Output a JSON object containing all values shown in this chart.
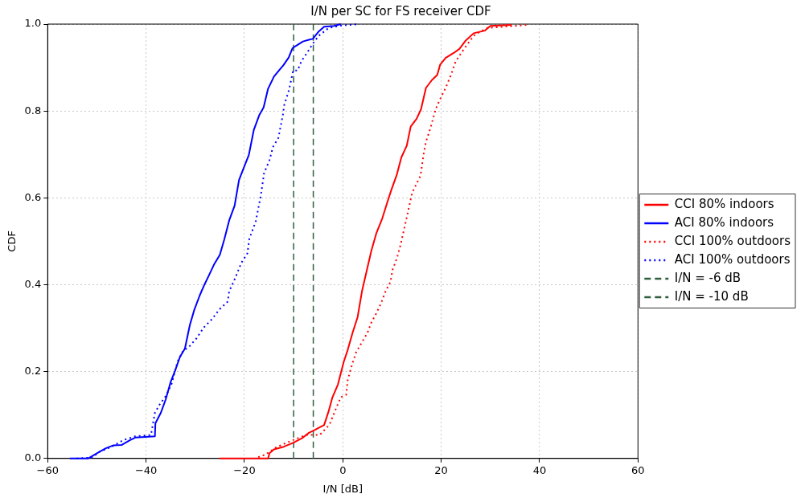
{
  "chart_data": {
    "type": "line",
    "title": "I/N per SC for FS receiver CDF",
    "xlabel": "I/N [dB]",
    "ylabel": "CDF",
    "xlim": [
      -60,
      60
    ],
    "ylim": [
      0,
      1
    ],
    "xticks": [
      {
        "value": -60,
        "label": "−60"
      },
      {
        "value": -40,
        "label": "−40"
      },
      {
        "value": -20,
        "label": "−20"
      },
      0,
      20,
      40,
      60
    ],
    "yticks": [
      {
        "value": 0,
        "label": "0.0"
      },
      {
        "value": 0.2,
        "label": "0.2"
      },
      {
        "value": 0.4,
        "label": "0.4"
      },
      {
        "value": 0.6,
        "label": "0.6"
      },
      {
        "value": 0.8,
        "label": "0.8"
      },
      {
        "value": 1,
        "label": "1.0"
      }
    ],
    "grid": true,
    "legend": "right",
    "marker": "none",
    "series": [
      {
        "name": "CCI 80% indoors",
        "color": "#ff0000",
        "line_style": "solid",
        "x": [
          -25.1,
          -15.2,
          -14.9,
          -14.0,
          -12.0,
          -10.1,
          -8.1,
          -6.9,
          -5.8,
          -4.8,
          -3.8,
          -2.9,
          -2.1,
          -1.0,
          0.2,
          1.0,
          2.0,
          3.0,
          3.9,
          4.9,
          5.8,
          6.8,
          8.0,
          9.0,
          9.8,
          11.0,
          11.9,
          13.0,
          13.8,
          15.0,
          15.9,
          16.9,
          18.1,
          19.2,
          19.8,
          20.9,
          22.6,
          23.7,
          24.9,
          26.6,
          28.9,
          30.0,
          34.3
        ],
        "values": [
          0,
          0,
          0.012,
          0.021,
          0.027,
          0.036,
          0.048,
          0.059,
          0.065,
          0.071,
          0.077,
          0.108,
          0.141,
          0.17,
          0.223,
          0.25,
          0.29,
          0.325,
          0.385,
          0.434,
          0.478,
          0.518,
          0.552,
          0.588,
          0.616,
          0.654,
          0.693,
          0.72,
          0.764,
          0.782,
          0.804,
          0.853,
          0.871,
          0.883,
          0.907,
          0.922,
          0.934,
          0.943,
          0.961,
          0.979,
          0.985,
          0.996,
          0.998
        ]
      },
      {
        "name": "ACI 80% indoors",
        "color": "#0000ff",
        "line_style": "solid",
        "x": [
          -55.5,
          -51.8,
          -49.5,
          -48.1,
          -46.7,
          -45.0,
          -43.3,
          -42.2,
          -38.2,
          -38.1,
          -37.0,
          -36.0,
          -35.0,
          -34.1,
          -33.1,
          -32.1,
          -31.1,
          -30.2,
          -29.1,
          -28.1,
          -27.2,
          -26.2,
          -25.0,
          -24.1,
          -23.1,
          -22.0,
          -21.1,
          -20.1,
          -19.1,
          -18.1,
          -17.0,
          -16.1,
          -15.2,
          -14.0,
          -13.0,
          -12.1,
          -11.0,
          -10.2,
          -9.2,
          -8.1,
          -6.9,
          -6.1,
          -4.9,
          -3.8,
          -1.8,
          -0.4
        ],
        "values": [
          0,
          0,
          0.015,
          0.024,
          0.03,
          0.031,
          0.042,
          0.048,
          0.051,
          0.081,
          0.105,
          0.136,
          0.176,
          0.202,
          0.234,
          0.253,
          0.307,
          0.342,
          0.375,
          0.401,
          0.422,
          0.446,
          0.469,
          0.504,
          0.548,
          0.582,
          0.641,
          0.67,
          0.699,
          0.756,
          0.79,
          0.808,
          0.851,
          0.879,
          0.893,
          0.905,
          0.923,
          0.945,
          0.952,
          0.96,
          0.964,
          0.966,
          0.983,
          0.994,
          0.996,
          1
        ]
      },
      {
        "name": "CCI 100% outdoors",
        "color": "#ff0000",
        "line_style": "dotted",
        "x": [
          -17.2,
          -15.7,
          -13.8,
          -11.5,
          -9.5,
          -7.5,
          -4.7,
          -3.2,
          -2.7,
          -1.2,
          -0.4,
          0.7,
          1.0,
          1.9,
          2.7,
          3.9,
          5.0,
          5.8,
          6.8,
          7.8,
          8.7,
          9.7,
          10.1,
          11.0,
          11.7,
          13.0,
          14.1,
          15.8,
          16.4,
          16.9,
          17.8,
          18.9,
          20.1,
          20.9,
          22.1,
          22.9,
          24.1,
          26.0,
          26.9,
          29.4,
          37.4
        ],
        "values": [
          0.003,
          0.009,
          0.024,
          0.036,
          0.045,
          0.054,
          0.054,
          0.072,
          0.078,
          0.12,
          0.141,
          0.147,
          0.181,
          0.217,
          0.244,
          0.268,
          0.289,
          0.313,
          0.334,
          0.358,
          0.385,
          0.407,
          0.434,
          0.461,
          0.49,
          0.555,
          0.612,
          0.651,
          0.699,
          0.729,
          0.76,
          0.805,
          0.835,
          0.853,
          0.886,
          0.913,
          0.934,
          0.964,
          0.976,
          0.991,
          0.998
        ]
      },
      {
        "name": "ACI 100% outdoors",
        "color": "#0000ff",
        "line_style": "dotted",
        "x": [
          -54.1,
          -51.0,
          -49.5,
          -47.0,
          -44.7,
          -42.2,
          -39.0,
          -38.2,
          -37.3,
          -35.9,
          -34.8,
          -33.6,
          -32.5,
          -31.1,
          -29.7,
          -28.3,
          -26.5,
          -25.1,
          -23.4,
          -23.1,
          -22.0,
          -20.6,
          -19.4,
          -19.0,
          -18.6,
          -17.7,
          -16.7,
          -16.0,
          -14.9,
          -14.2,
          -13.1,
          -12.2,
          -11.9,
          -10.9,
          -10.1,
          -9.2,
          -8.4,
          -7.2,
          -6.1,
          -4.9,
          -2.9,
          -0.1,
          3.3
        ],
        "values": [
          0,
          0.002,
          0.015,
          0.027,
          0.042,
          0.051,
          0.054,
          0.105,
          0.123,
          0.145,
          0.172,
          0.223,
          0.247,
          0.259,
          0.277,
          0.301,
          0.322,
          0.343,
          0.361,
          0.385,
          0.412,
          0.451,
          0.472,
          0.506,
          0.518,
          0.546,
          0.603,
          0.657,
          0.687,
          0.717,
          0.738,
          0.79,
          0.814,
          0.85,
          0.893,
          0.893,
          0.915,
          0.935,
          0.955,
          0.973,
          0.991,
          0.997,
          1
        ]
      },
      {
        "name": "I/N = -6 dB",
        "color": "#2e5e3e",
        "line_style": "dashed",
        "x": [
          -6,
          -6
        ],
        "values": [
          0,
          1
        ]
      },
      {
        "name": "I/N = -10 dB",
        "color": "#2e5e3e",
        "line_style": "dashed",
        "x": [
          -10,
          -10
        ],
        "values": [
          0,
          1
        ]
      }
    ]
  }
}
